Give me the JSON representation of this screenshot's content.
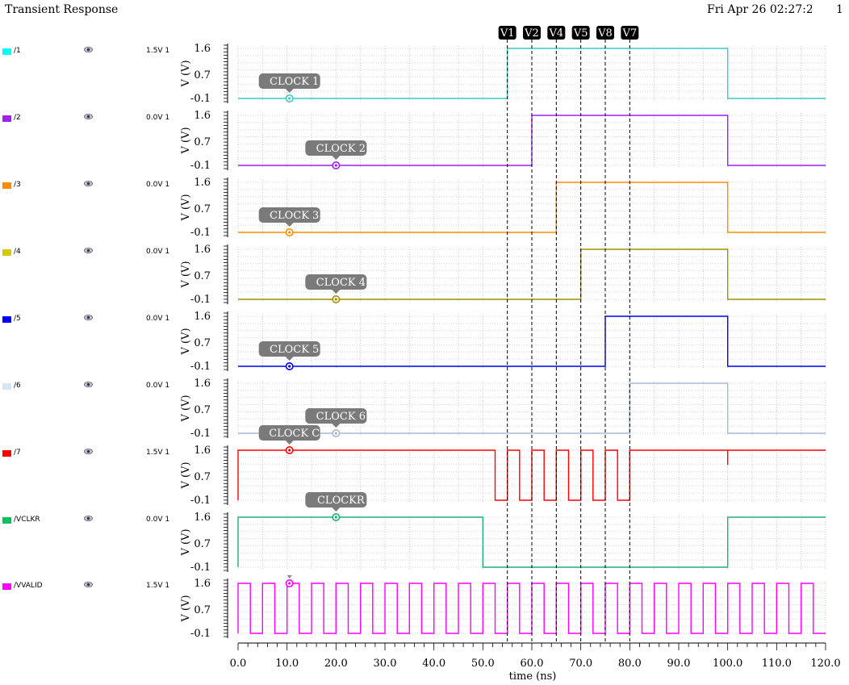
{
  "header": {
    "title": "Transient Response",
    "datestamp": "Fri Apr 26 02:27:22 2024",
    "page": "1"
  },
  "legend": [
    {
      "name": "/1",
      "value": "1.5V 1",
      "color": "#00ffff"
    },
    {
      "name": "/2",
      "value": "0.0V 1",
      "color": "#a020f0"
    },
    {
      "name": "/3",
      "value": "0.0V 1",
      "color": "#ff8c00"
    },
    {
      "name": "/4",
      "value": "0.0V 1",
      "color": "#d4c800"
    },
    {
      "name": "/5",
      "value": "0.0V 1",
      "color": "#0000ff"
    },
    {
      "name": "/6",
      "value": "0.0V 1",
      "color": "#d8e4f4"
    },
    {
      "name": "/7",
      "value": "1.5V 1",
      "color": "#ff0000"
    },
    {
      "name": "/VCLKR",
      "value": "0.0V 1",
      "color": "#00c060"
    },
    {
      "name": "/VVALID",
      "value": "1.5V 1",
      "color": "#ff00ff"
    }
  ],
  "chart_data": {
    "type": "line",
    "title": "Transient Response",
    "xlabel": "time (ns)",
    "ylabel": "V (V)",
    "xlim": [
      0,
      120
    ],
    "x_ticks": [
      "0.0",
      "10.0",
      "20.0",
      "30.0",
      "40.0",
      "50.0",
      "60.0",
      "70.0",
      "80.0",
      "90.0",
      "100.0",
      "110.0",
      "120.0"
    ],
    "y_ticks": [
      "-0.1",
      "0.7",
      "1.6"
    ],
    "ylim": [
      -0.1,
      1.6
    ],
    "grid": true,
    "markers": [
      {
        "label": "V1",
        "x": 55
      },
      {
        "label": "V2",
        "x": 60
      },
      {
        "label": "V4",
        "x": 65
      },
      {
        "label": "V5",
        "x": 70
      },
      {
        "label": "V8",
        "x": 75
      },
      {
        "label": "V7",
        "x": 80
      }
    ],
    "series": [
      {
        "name": "/1",
        "color": "#3cc8c8",
        "points": [
          [
            0,
            -0.1
          ],
          [
            55,
            -0.1
          ],
          [
            55,
            1.6
          ],
          [
            100,
            1.6
          ],
          [
            100,
            -0.1
          ],
          [
            120,
            -0.1
          ]
        ],
        "marker": {
          "x": 10.5,
          "label": "CLOCK 1"
        }
      },
      {
        "name": "/2",
        "color": "#a020f0",
        "points": [
          [
            0,
            -0.1
          ],
          [
            60,
            -0.1
          ],
          [
            60,
            1.6
          ],
          [
            100,
            1.6
          ],
          [
            100,
            -0.1
          ],
          [
            120,
            -0.1
          ]
        ],
        "marker": {
          "x": 20,
          "label": "CLOCK 2"
        }
      },
      {
        "name": "/3",
        "color": "#ff8c00",
        "points": [
          [
            0,
            -0.1
          ],
          [
            65,
            -0.1
          ],
          [
            65,
            1.6
          ],
          [
            100,
            1.6
          ],
          [
            100,
            -0.1
          ],
          [
            120,
            -0.1
          ]
        ],
        "marker": {
          "x": 10.5,
          "label": "CLOCK 3"
        }
      },
      {
        "name": "/4",
        "color": "#a09000",
        "points": [
          [
            0,
            -0.1
          ],
          [
            70,
            -0.1
          ],
          [
            70,
            1.6
          ],
          [
            100,
            1.6
          ],
          [
            100,
            -0.1
          ],
          [
            120,
            -0.1
          ]
        ],
        "marker": {
          "x": 20,
          "label": "CLOCK 4"
        }
      },
      {
        "name": "/5",
        "color": "#0000ee",
        "points": [
          [
            0,
            -0.1
          ],
          [
            75,
            -0.1
          ],
          [
            75,
            1.6
          ],
          [
            100,
            1.6
          ],
          [
            100,
            -0.1
          ],
          [
            120,
            -0.1
          ]
        ],
        "marker": {
          "x": 10.5,
          "label": "CLOCK 5"
        }
      },
      {
        "name": "/6",
        "color": "#a8b8d4",
        "points": [
          [
            0,
            -0.1
          ],
          [
            80,
            -0.1
          ],
          [
            80,
            1.6
          ],
          [
            100,
            1.6
          ],
          [
            100,
            -0.1
          ],
          [
            120,
            -0.1
          ]
        ],
        "marker": {
          "x": 20,
          "label": "CLOCK 6"
        }
      },
      {
        "name": "/7",
        "color": "#ff0000",
        "points": [
          [
            0,
            -0.1
          ],
          [
            0,
            1.6
          ],
          [
            52.5,
            1.6
          ],
          [
            52.5,
            -0.1
          ],
          [
            55,
            -0.1
          ],
          [
            55,
            1.6
          ],
          [
            57.5,
            1.6
          ],
          [
            57.5,
            -0.1
          ],
          [
            60,
            -0.1
          ],
          [
            60,
            1.6
          ],
          [
            62.5,
            1.6
          ],
          [
            62.5,
            -0.1
          ],
          [
            65,
            -0.1
          ],
          [
            65,
            1.6
          ],
          [
            67.5,
            1.6
          ],
          [
            67.5,
            -0.1
          ],
          [
            70,
            -0.1
          ],
          [
            70,
            1.6
          ],
          [
            72.5,
            1.6
          ],
          [
            72.5,
            -0.1
          ],
          [
            75,
            -0.1
          ],
          [
            75,
            1.6
          ],
          [
            77.5,
            1.6
          ],
          [
            77.5,
            -0.1
          ],
          [
            80,
            -0.1
          ],
          [
            80,
            1.6
          ],
          [
            100,
            1.6
          ],
          [
            100,
            1.1
          ],
          [
            100,
            1.6
          ],
          [
            120,
            1.6
          ]
        ],
        "marker": {
          "x": 10.5,
          "label": "CLOCK C"
        }
      },
      {
        "name": "/VCLKR",
        "color": "#20b070",
        "points": [
          [
            0,
            -0.1
          ],
          [
            0,
            1.6
          ],
          [
            50,
            1.6
          ],
          [
            50,
            -0.1
          ],
          [
            100,
            -0.1
          ],
          [
            100,
            1.6
          ],
          [
            120,
            1.6
          ]
        ],
        "marker": {
          "x": 20,
          "label": "CLOCKR"
        }
      },
      {
        "name": "/VVALID",
        "color": "#ff00ff",
        "period": 5,
        "high_first": true,
        "range": [
          0,
          120
        ],
        "marker": {
          "x": 10.5,
          "label": ""
        }
      }
    ]
  }
}
